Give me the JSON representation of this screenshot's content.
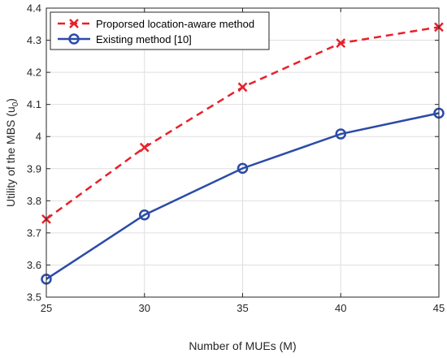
{
  "chart_data": {
    "type": "line",
    "title": "",
    "xlabel": "Number of MUEs (M)",
    "ylabel": "Utility of the MBS (u",
    "ylabel_subscript": "0",
    "ylabel_suffix": ")",
    "xlim": [
      25,
      45
    ],
    "ylim": [
      3.5,
      4.4
    ],
    "xticks": [
      25,
      30,
      35,
      40,
      45
    ],
    "yticks": [
      3.5,
      3.6,
      3.7,
      3.8,
      3.9,
      4,
      4.1,
      4.2,
      4.3,
      4.4
    ],
    "grid": true,
    "legend_position": "top-left",
    "x": [
      25,
      30,
      35,
      40,
      45
    ],
    "series": [
      {
        "name": "Proporsed location-aware method",
        "values": [
          3.743,
          3.966,
          4.154,
          4.291,
          4.341
        ],
        "color": "#e8202a",
        "line_style": "dashed",
        "marker": "x"
      },
      {
        "name": "Existing method [10]",
        "values": [
          3.556,
          3.756,
          3.901,
          4.008,
          4.073
        ],
        "color": "#2a4ba8",
        "line_style": "solid",
        "marker": "circle"
      }
    ]
  }
}
